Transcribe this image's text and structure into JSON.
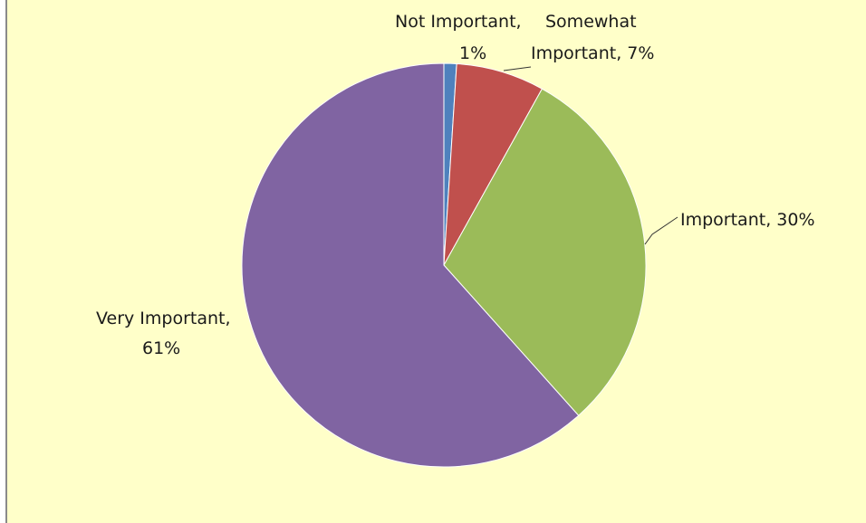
{
  "chart_data": {
    "type": "pie",
    "categories": [
      "Not Important",
      "Somewhat Important",
      "Important",
      "Very Important"
    ],
    "values": [
      1,
      7,
      30,
      61
    ],
    "colors": [
      "#4f81bd",
      "#c0504d",
      "#9bbb59",
      "#8064a2"
    ],
    "labels": [
      {
        "line1": "Not Important,",
        "line2": "1%"
      },
      {
        "line1": "Somewhat",
        "line2": "Important, 7%"
      },
      {
        "line1": "Important, 30%",
        "line2": ""
      },
      {
        "line1": "Very Important,",
        "line2": "61%"
      }
    ],
    "legend": "none",
    "title": ""
  }
}
